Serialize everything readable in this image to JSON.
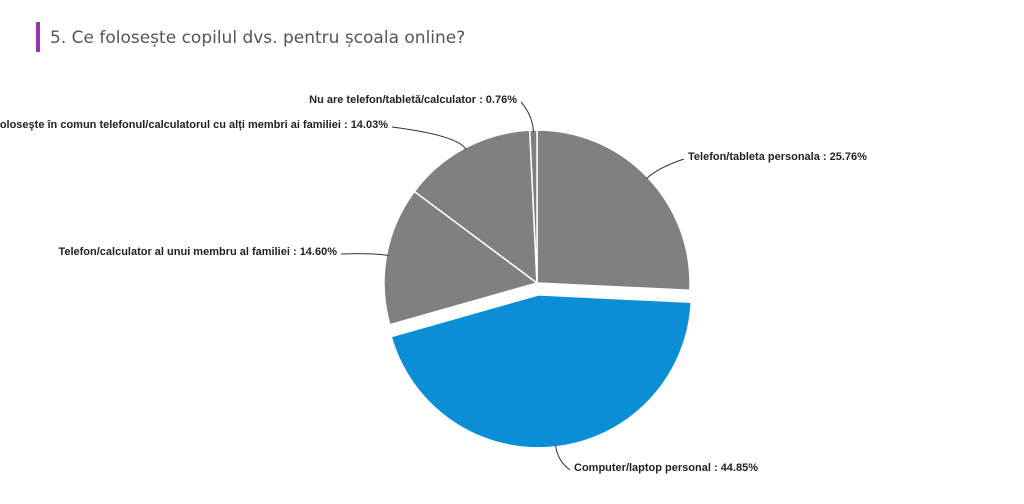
{
  "chart_data": {
    "type": "pie",
    "title": "5. Ce folosește copilul dvs. pentru școala online?",
    "categories": [
      "Telefon/tableta personala ",
      "Computer/laptop personal",
      "Telefon/calculator al unui membru al familiei",
      "Foloseşte în comun telefonul/calculatorul cu alți membri ai familiei",
      "Nu are telefon/tabletă/calculator"
    ],
    "label_separator": " : ",
    "values": [
      25.76,
      44.85,
      14.6,
      14.03,
      0.76
    ],
    "value_labels": [
      "25.76%",
      "44.85%",
      "14.60%",
      "14.03%",
      "0.76%"
    ],
    "colors": [
      "#808080",
      "#0a8fd6",
      "#808080",
      "#808080",
      "#808080"
    ],
    "exploded": [
      false,
      true,
      false,
      false,
      false
    ]
  }
}
